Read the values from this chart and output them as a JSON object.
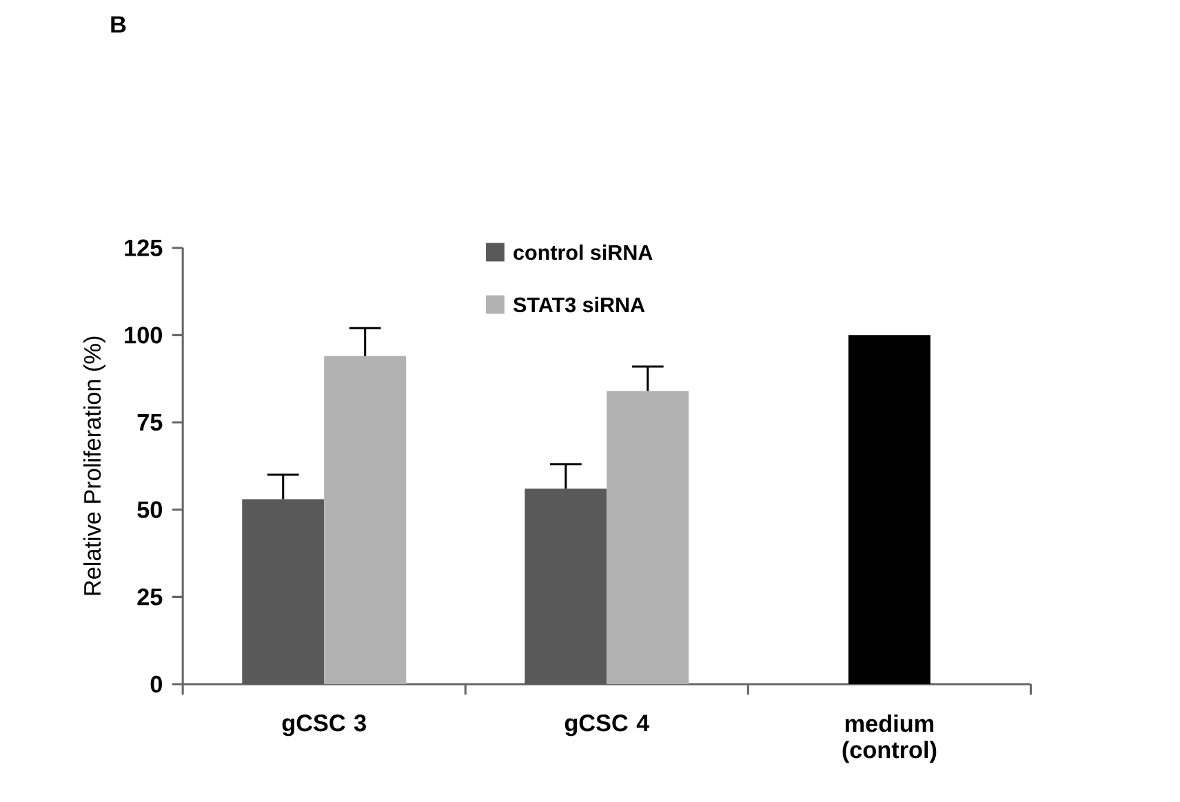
{
  "chart_data": {
    "type": "bar",
    "title": "B",
    "ylabel": "Relative Proliferation (%)",
    "categories": [
      "gCSC 3",
      "gCSC 4",
      "medium (control)"
    ],
    "series": [
      {
        "name": "control siRNA",
        "color": "#595959",
        "colors": [
          "#595959",
          "#595959",
          "#000000"
        ],
        "values": [
          53,
          56,
          100
        ],
        "errors": [
          7,
          7,
          null
        ]
      },
      {
        "name": "STAT3 siRNA",
        "color": "#b2b2b2",
        "values": [
          94,
          84,
          null
        ],
        "errors": [
          8,
          7,
          null
        ]
      }
    ],
    "ylim": [
      0,
      125
    ],
    "yticks": [
      0,
      25,
      50,
      75,
      100,
      125
    ],
    "grid": false,
    "legend": "top"
  }
}
